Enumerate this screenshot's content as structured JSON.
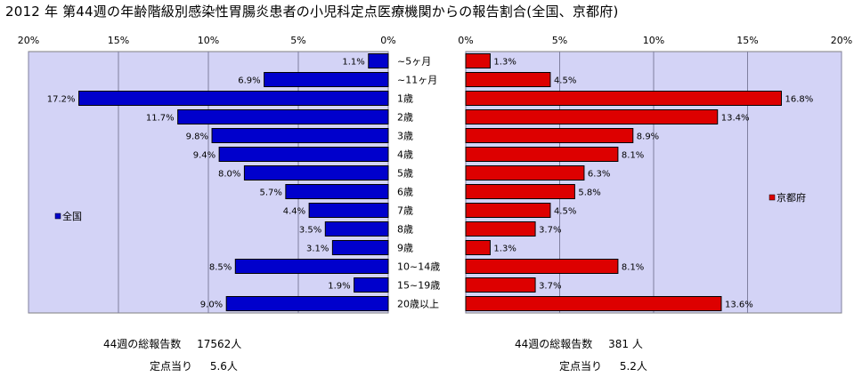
{
  "title": "2012 年 第44週の年齢階級別感染性胃腸炎患者の小児科定点医療機関からの報告割合(全国、京都府)",
  "chart_data": [
    {
      "type": "bar",
      "orientation": "horizontal-reversed",
      "title": "",
      "legend": "全国",
      "legend_position": "left",
      "color": "#0000CC",
      "xlim": [
        0,
        20
      ],
      "ticks": [
        "20%",
        "15%",
        "10%",
        "5%",
        "0%"
      ],
      "grid": true,
      "categories": [
        "~5ヶ月",
        "~11ヶ月",
        "1歳",
        "2歳",
        "3歳",
        "4歳",
        "5歳",
        "6歳",
        "7歳",
        "8歳",
        "9歳",
        "10~14歳",
        "15~19歳",
        "20歳以上"
      ],
      "values": [
        1.1,
        6.9,
        17.2,
        11.7,
        9.8,
        9.4,
        8.0,
        5.7,
        4.4,
        3.5,
        3.1,
        8.5,
        1.9,
        9.0
      ],
      "labels": [
        "1.1%",
        "6.9%",
        "17.2%",
        "11.7%",
        "9.8%",
        "9.4%",
        "8.0%",
        "5.7%",
        "4.4%",
        "3.5%",
        "3.1%",
        "8.5%",
        "1.9%",
        "9.0%"
      ]
    },
    {
      "type": "bar",
      "orientation": "horizontal",
      "title": "",
      "legend": "京都府",
      "legend_position": "right",
      "color": "#DD0000",
      "xlim": [
        0,
        20
      ],
      "ticks": [
        "0%",
        "5%",
        "10%",
        "15%",
        "20%"
      ],
      "grid": true,
      "categories": [
        "~5ヶ月",
        "~11ヶ月",
        "1歳",
        "2歳",
        "3歳",
        "4歳",
        "5歳",
        "6歳",
        "7歳",
        "8歳",
        "9歳",
        "10~14歳",
        "15~19歳",
        "20歳以上"
      ],
      "values": [
        1.3,
        4.5,
        16.8,
        13.4,
        8.9,
        8.1,
        6.3,
        5.8,
        4.5,
        3.7,
        1.3,
        8.1,
        3.7,
        13.6
      ],
      "labels": [
        "1.3%",
        "4.5%",
        "16.8%",
        "13.4%",
        "8.9%",
        "8.1%",
        "6.3%",
        "5.8%",
        "4.5%",
        "3.7%",
        "1.3%",
        "8.1%",
        "3.7%",
        "13.6%"
      ]
    }
  ],
  "footer": {
    "left": {
      "total_label": "44週の総報告数",
      "total_value": "17562人",
      "per_label": "定点当り",
      "per_value": "5.6人"
    },
    "right": {
      "total_label": "44週の総報告数",
      "total_value": "381 人",
      "per_label": "定点当り",
      "per_value": "5.2人"
    }
  },
  "colors": {
    "plot_background": "#D3D3F6",
    "grid": "#7F7F9F",
    "left_bar": "#0000CC",
    "right_bar": "#DD0000"
  }
}
